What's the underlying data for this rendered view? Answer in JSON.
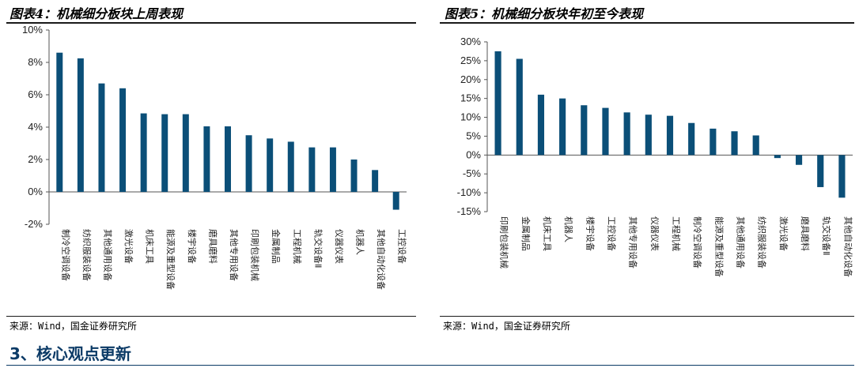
{
  "chart_data": [
    {
      "type": "bar",
      "title": "图表4：机械细分板块上周表现",
      "source": "来源：Wind，国金证券研究所",
      "categories": [
        "制冷空调设备",
        "纺织服装设备",
        "其他通用设备",
        "激光设备",
        "机床工具",
        "能源及重型设备",
        "楼宇设备",
        "磨具磨料",
        "其他专用设备",
        "印刷包装机械",
        "金属制品",
        "工程机械",
        "轨交设备Ⅱ",
        "仪器仪表",
        "机器人",
        "其他自动化设备",
        "工控设备"
      ],
      "values": [
        8.6,
        8.25,
        6.7,
        6.4,
        4.85,
        4.8,
        4.8,
        4.05,
        4.05,
        3.5,
        3.3,
        3.1,
        2.75,
        2.75,
        2.0,
        1.35,
        -1.1
      ],
      "ylim": [
        -2,
        10
      ],
      "yticks": [
        -2,
        0,
        2,
        4,
        6,
        8,
        10
      ],
      "ytick_labels": [
        "-2%",
        "0%",
        "2%",
        "4%",
        "6%",
        "8%",
        "10%"
      ],
      "color": "#0b4f78",
      "grid": false
    },
    {
      "type": "bar",
      "title": "图表5：机械细分板块年初至今表现",
      "source": "来源：Wind，国金证券研究所",
      "categories": [
        "印刷包装机械",
        "金属制品",
        "机床工具",
        "机器人",
        "楼宇设备",
        "工控设备",
        "其他专用设备",
        "仪器仪表",
        "工程机械",
        "制冷空调设备",
        "能源及重型设备",
        "其他通用设备",
        "纺织服装设备",
        "激光设备",
        "磨具磨料",
        "轨交设备Ⅱ",
        "其他自动化设备"
      ],
      "values": [
        27.5,
        25.5,
        16.0,
        15.0,
        13.2,
        12.5,
        11.3,
        10.7,
        10.4,
        8.5,
        7.0,
        6.3,
        5.2,
        -0.8,
        -2.6,
        -8.5,
        -11.3
      ],
      "ylim": [
        -15,
        30
      ],
      "yticks": [
        -15,
        -10,
        -5,
        0,
        5,
        10,
        15,
        20,
        25,
        30
      ],
      "ytick_labels": [
        "-15%",
        "-10%",
        "-5%",
        "0%",
        "5%",
        "10%",
        "15%",
        "20%",
        "25%",
        "30%"
      ],
      "color": "#0b4f78",
      "grid": false
    }
  ],
  "section": {
    "heading": "3、核心观点更新"
  }
}
